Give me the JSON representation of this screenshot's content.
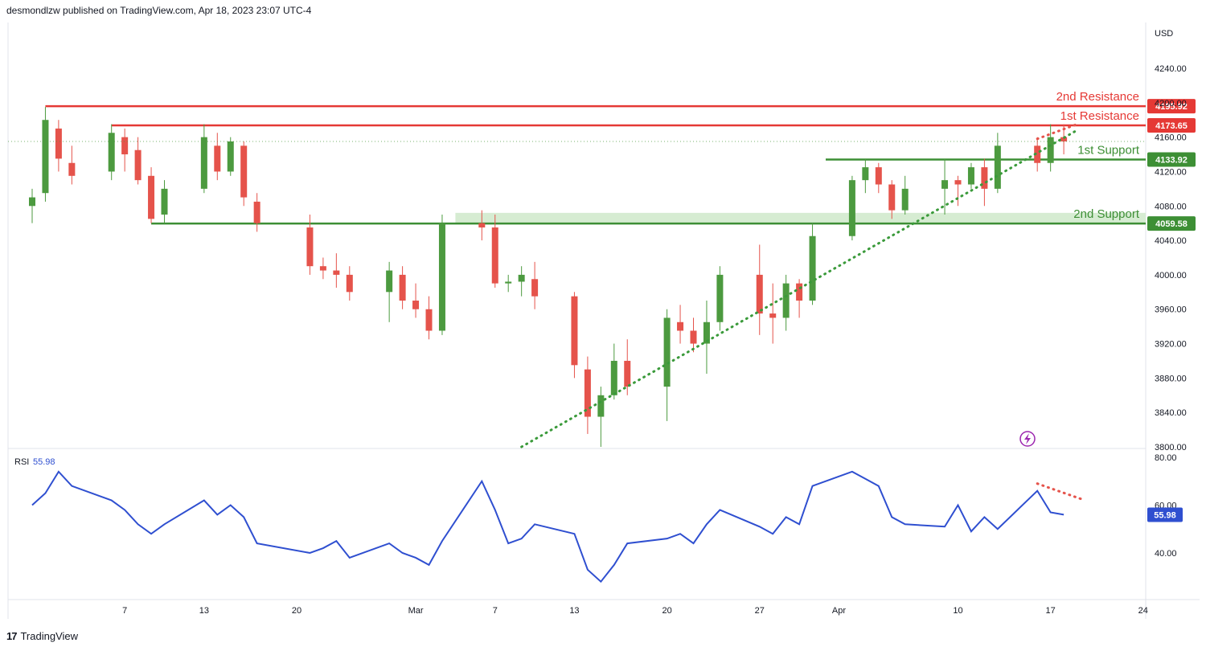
{
  "header": {
    "text": "desmondlzw published on TradingView.com, Apr 18, 2023 23:07 UTC-4"
  },
  "footer": {
    "brand": "TradingView"
  },
  "colors": {
    "up": "#4c9a3f",
    "down": "#e5534b",
    "resistance": "#e53935",
    "support": "#3d8f35",
    "rsi": "#2f4fd0",
    "trend": "#3a9a3a"
  },
  "chart_data": [
    {
      "type": "candlestick",
      "currency_label": "USD",
      "ylim": [
        3800,
        4260
      ],
      "y_ticks": [
        "4240.00",
        "4200.00",
        "4160.00",
        "4120.00",
        "4080.00",
        "4040.00",
        "4000.00",
        "3960.00",
        "3920.00",
        "3880.00",
        "3840.00",
        "3800.00"
      ],
      "x_ticks": [
        "7",
        "13",
        "20",
        "Mar",
        "7",
        "13",
        "20",
        "27",
        "Apr",
        "10",
        "17",
        "24"
      ],
      "x_tick_days": [
        7,
        13,
        20,
        29,
        35,
        41,
        48,
        55,
        61,
        70,
        77,
        84
      ],
      "x_days": [
        0,
        1,
        2,
        3,
        6,
        7,
        8,
        9,
        10,
        13,
        14,
        15,
        16,
        17,
        21,
        22,
        23,
        24,
        27,
        28,
        29,
        30,
        31,
        34,
        35,
        36,
        37,
        38,
        41,
        42,
        43,
        44,
        45,
        48,
        49,
        50,
        51,
        52,
        55,
        56,
        57,
        58,
        59,
        62,
        63,
        64,
        65,
        66,
        69,
        70,
        71,
        72,
        73,
        76,
        77,
        78
      ],
      "ohlc": [
        [
          4080,
          4100,
          4060,
          4090
        ],
        [
          4095,
          4195,
          4085,
          4180
        ],
        [
          4170,
          4180,
          4120,
          4135
        ],
        [
          4130,
          4150,
          4105,
          4115
        ],
        [
          4120,
          4175,
          4110,
          4165
        ],
        [
          4160,
          4170,
          4120,
          4140
        ],
        [
          4145,
          4160,
          4105,
          4110
        ],
        [
          4115,
          4125,
          4060,
          4065
        ],
        [
          4070,
          4110,
          4060,
          4100
        ],
        [
          4100,
          4175,
          4095,
          4160
        ],
        [
          4150,
          4165,
          4110,
          4120
        ],
        [
          4120,
          4160,
          4115,
          4155
        ],
        [
          4150,
          4155,
          4080,
          4090
        ],
        [
          4085,
          4095,
          4050,
          4060
        ],
        [
          4055,
          4070,
          4000,
          4010
        ],
        [
          4010,
          4020,
          3995,
          4005
        ],
        [
          4005,
          4025,
          3985,
          4000
        ],
        [
          4000,
          4010,
          3970,
          3980
        ],
        [
          3980,
          4015,
          3945,
          4005
        ],
        [
          4000,
          4010,
          3960,
          3970
        ],
        [
          3970,
          3990,
          3950,
          3960
        ],
        [
          3960,
          3975,
          3925,
          3935
        ],
        [
          3935,
          4070,
          3930,
          4060
        ],
        [
          4060,
          4075,
          4040,
          4055
        ],
        [
          4055,
          4070,
          3985,
          3990
        ],
        [
          3990,
          4000,
          3980,
          3992
        ],
        [
          3992,
          4010,
          3975,
          4000
        ],
        [
          3995,
          4015,
          3960,
          3975
        ],
        [
          3975,
          3980,
          3880,
          3895
        ],
        [
          3890,
          3905,
          3815,
          3835
        ],
        [
          3835,
          3870,
          3800,
          3860
        ],
        [
          3860,
          3920,
          3855,
          3900
        ],
        [
          3900,
          3925,
          3860,
          3870
        ],
        [
          3870,
          3960,
          3830,
          3950
        ],
        [
          3945,
          3965,
          3920,
          3935
        ],
        [
          3935,
          3950,
          3910,
          3920
        ],
        [
          3920,
          3970,
          3885,
          3945
        ],
        [
          3945,
          4010,
          3935,
          4000
        ],
        [
          4000,
          4035,
          3930,
          3955
        ],
        [
          3955,
          3990,
          3920,
          3950
        ],
        [
          3950,
          4000,
          3935,
          3990
        ],
        [
          3990,
          3995,
          3950,
          3970
        ],
        [
          3970,
          4060,
          3965,
          4045
        ],
        [
          4045,
          4115,
          4040,
          4110
        ],
        [
          4110,
          4135,
          4095,
          4125
        ],
        [
          4125,
          4130,
          4095,
          4105
        ],
        [
          4105,
          4110,
          4065,
          4075
        ],
        [
          4075,
          4115,
          4070,
          4100
        ],
        [
          4100,
          4135,
          4070,
          4110
        ],
        [
          4110,
          4115,
          4080,
          4105
        ],
        [
          4105,
          4130,
          4100,
          4125
        ],
        [
          4125,
          4135,
          4080,
          4100
        ],
        [
          4100,
          4165,
          4095,
          4150
        ],
        [
          4150,
          4160,
          4120,
          4130
        ],
        [
          4130,
          4175,
          4120,
          4160
        ],
        [
          4160,
          4175,
          4140,
          4155
        ]
      ],
      "levels": [
        {
          "name": "2nd Resistance",
          "value": 4195.92,
          "label": "4195.92",
          "kind": "resistance"
        },
        {
          "name": "1st Resistance",
          "value": 4173.65,
          "label": "4173.65",
          "kind": "resistance"
        },
        {
          "name": "1st Support",
          "value": 4133.92,
          "label": "4133.92",
          "kind": "support"
        },
        {
          "name": "2nd Support",
          "value": 4059.58,
          "label": "4059.58",
          "kind": "support"
        }
      ],
      "support_zone": [
        4059.58,
        4072
      ],
      "trendline": {
        "from": [
          37,
          3800
        ],
        "to": [
          79,
          4168
        ]
      },
      "resistance_dotted": {
        "from": [
          76,
          4158
        ],
        "to": [
          79,
          4175
        ]
      }
    },
    {
      "type": "line",
      "name": "RSI",
      "last_value": "55.98",
      "last_label": "55.98",
      "ylim": [
        20,
        80
      ],
      "y_ticks": [
        "80.00",
        "60.00",
        "40.00"
      ],
      "x_days": [
        0,
        1,
        2,
        3,
        6,
        7,
        8,
        9,
        10,
        13,
        14,
        15,
        16,
        17,
        21,
        22,
        23,
        24,
        27,
        28,
        29,
        30,
        31,
        34,
        35,
        36,
        37,
        38,
        41,
        42,
        43,
        44,
        45,
        48,
        49,
        50,
        51,
        52,
        55,
        56,
        57,
        58,
        59,
        62,
        63,
        64,
        65,
        66,
        69,
        70,
        71,
        72,
        73,
        76,
        77,
        78
      ],
      "values": [
        60,
        65,
        74,
        68,
        62,
        58,
        52,
        48,
        52,
        62,
        56,
        60,
        55,
        44,
        40,
        42,
        45,
        38,
        44,
        40,
        38,
        35,
        45,
        70,
        58,
        44,
        46,
        52,
        48,
        33,
        28,
        35,
        44,
        46,
        48,
        44,
        52,
        58,
        51,
        48,
        55,
        52,
        68,
        74,
        71,
        68,
        55,
        52,
        51,
        60,
        49,
        55,
        50,
        66,
        57,
        56
      ],
      "divergence": {
        "from": [
          76,
          69
        ],
        "to": [
          79,
          62
        ]
      }
    }
  ]
}
